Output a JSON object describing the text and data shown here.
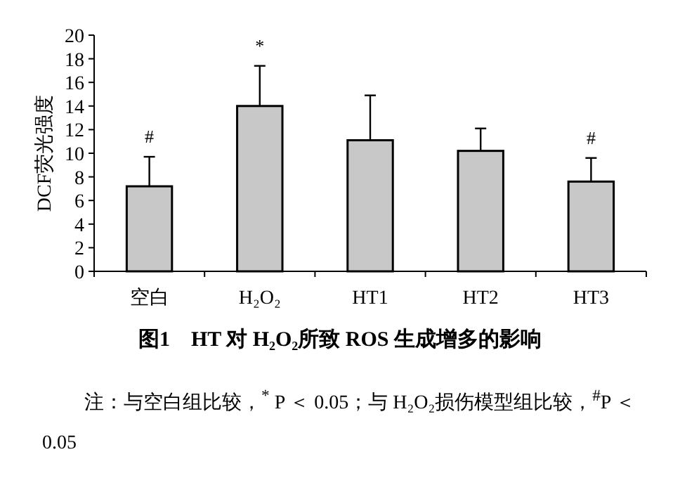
{
  "chart_data": {
    "type": "bar",
    "title": "图1　HT 对 H₂O₂所致 ROS 生成增多的影响",
    "ylabel": "DCF荧光强度",
    "categories": [
      "空白",
      "H₂O₂",
      "HT1",
      "HT2",
      "HT3"
    ],
    "values": [
      7.2,
      14.0,
      11.1,
      10.2,
      7.6
    ],
    "errors": [
      [
        7.2,
        9.7
      ],
      [
        14.0,
        17.4
      ],
      [
        11.1,
        14.9
      ],
      [
        10.2,
        12.1
      ],
      [
        7.6,
        9.6
      ]
    ],
    "color": "#c8c8c8",
    "ylim": [
      0,
      20
    ],
    "yticks": [
      0,
      2,
      4,
      6,
      8,
      10,
      12,
      14,
      16,
      18,
      20
    ],
    "annotations": [
      {
        "text": "#",
        "x": "空白",
        "y": 9.7
      },
      {
        "text": "*",
        "x": "H₂O₂",
        "y": 17.4
      },
      {
        "text": "#",
        "x": "HT3",
        "y": 9.6
      },
      "注：与空白组比较，$^{*}$ P ＜ 0.05；与 H₂O₂损伤模型组比较，$^{#}$P ＜ 0.05"
    ]
  }
}
